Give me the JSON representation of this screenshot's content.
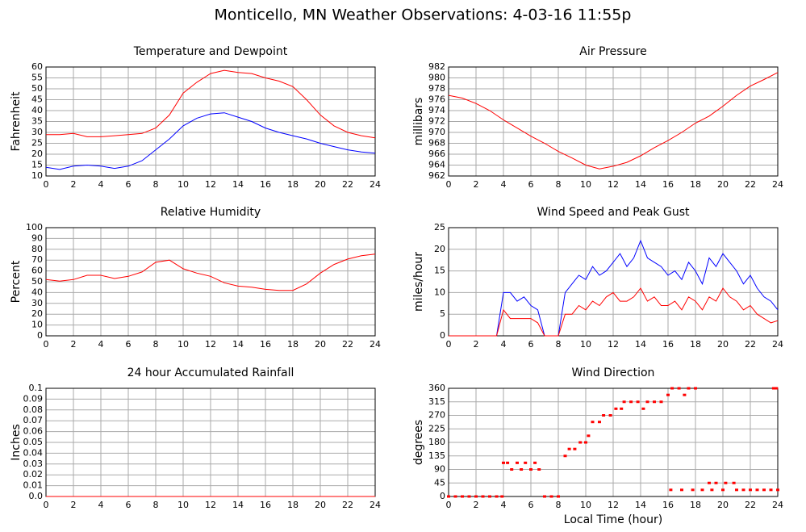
{
  "title": "Monticello, MN Weather Observations: 4-03-16 11:55p",
  "chart_data": [
    {
      "type": "line",
      "title": "Temperature and Dewpoint",
      "ylabel": "Fahrenheit",
      "x": [
        0,
        1,
        2,
        3,
        4,
        5,
        6,
        7,
        8,
        9,
        10,
        11,
        12,
        13,
        14,
        15,
        16,
        17,
        18,
        19,
        20,
        21,
        22,
        23,
        24
      ],
      "series": [
        {
          "color": "#ff0000",
          "values": [
            29,
            29,
            29.5,
            28,
            28,
            28.5,
            29,
            29.5,
            32,
            38,
            48,
            53,
            57,
            58.5,
            57.5,
            57,
            55,
            53.5,
            51,
            45,
            38,
            33,
            30,
            28.5,
            27.5
          ]
        },
        {
          "color": "#0000ff",
          "values": [
            14,
            13,
            14.5,
            15,
            14.5,
            13.5,
            14.5,
            17,
            22,
            27,
            33,
            36.5,
            38.5,
            39,
            37,
            35,
            32,
            30,
            28.5,
            27,
            25,
            23.5,
            22,
            21,
            20.5
          ]
        }
      ],
      "xlim": [
        0,
        24
      ],
      "xticks": [
        0,
        2,
        4,
        6,
        8,
        10,
        12,
        14,
        16,
        18,
        20,
        22,
        24
      ],
      "ylim": [
        10,
        60
      ],
      "yticks": [
        10,
        15,
        20,
        25,
        30,
        35,
        40,
        45,
        50,
        55,
        60
      ],
      "grid": true
    },
    {
      "type": "line",
      "title": "Air Pressure",
      "ylabel": "millibars",
      "x": [
        0,
        1,
        2,
        3,
        4,
        5,
        6,
        7,
        8,
        9,
        10,
        11,
        12,
        13,
        14,
        15,
        16,
        17,
        18,
        19,
        20,
        21,
        22,
        23,
        24
      ],
      "series": [
        {
          "color": "#ff0000",
          "values": [
            976.8,
            976.3,
            975.3,
            974,
            972.3,
            970.8,
            969.3,
            968,
            966.5,
            965.3,
            964,
            963.3,
            963.8,
            964.5,
            965.7,
            967.2,
            968.5,
            970,
            971.7,
            973,
            974.8,
            976.8,
            978.5,
            979.7,
            981
          ]
        }
      ],
      "xlim": [
        0,
        24
      ],
      "xticks": [
        0,
        2,
        4,
        6,
        8,
        10,
        12,
        14,
        16,
        18,
        20,
        22,
        24
      ],
      "ylim": [
        962,
        982
      ],
      "yticks": [
        962,
        964,
        966,
        968,
        970,
        972,
        974,
        976,
        978,
        980,
        982
      ],
      "grid": true
    },
    {
      "type": "line",
      "title": "Relative Humidity",
      "ylabel": "Percent",
      "x": [
        0,
        1,
        2,
        3,
        4,
        5,
        6,
        7,
        8,
        9,
        10,
        11,
        12,
        13,
        14,
        15,
        16,
        17,
        18,
        19,
        20,
        21,
        22,
        23,
        24
      ],
      "series": [
        {
          "color": "#ff0000",
          "values": [
            52,
            50.5,
            52,
            56,
            56,
            53,
            55,
            59,
            68,
            70,
            62,
            58,
            55,
            49,
            46,
            45,
            43,
            42,
            42,
            48,
            58,
            66,
            71,
            74,
            75.5
          ]
        }
      ],
      "xlim": [
        0,
        24
      ],
      "xticks": [
        0,
        2,
        4,
        6,
        8,
        10,
        12,
        14,
        16,
        18,
        20,
        22,
        24
      ],
      "ylim": [
        0,
        100
      ],
      "yticks": [
        0,
        10,
        20,
        30,
        40,
        50,
        60,
        70,
        80,
        90,
        100
      ],
      "grid": true
    },
    {
      "type": "line",
      "title": "Wind Speed and Peak Gust",
      "ylabel": "miles/hour",
      "x": [
        0,
        0.5,
        1,
        1.5,
        2,
        2.5,
        3,
        3.5,
        4,
        4.5,
        5,
        5.5,
        6,
        6.5,
        7,
        7.5,
        8,
        8.5,
        9,
        9.5,
        10,
        10.5,
        11,
        11.5,
        12,
        12.5,
        13,
        13.5,
        14,
        14.5,
        15,
        15.5,
        16,
        16.5,
        17,
        17.5,
        18,
        18.5,
        19,
        19.5,
        20,
        20.5,
        21,
        21.5,
        22,
        22.5,
        23,
        23.5,
        24
      ],
      "series": [
        {
          "color": "#0000ff",
          "values": [
            0,
            0,
            0,
            0,
            0,
            0,
            0,
            0,
            10,
            10,
            8,
            9,
            7,
            6,
            0,
            0,
            0,
            10,
            12,
            14,
            13,
            16,
            14,
            15,
            17,
            19,
            16,
            18,
            22,
            18,
            17,
            16,
            14,
            15,
            13,
            17,
            15,
            12,
            18,
            16,
            19,
            17,
            15,
            12,
            14,
            11,
            9,
            8,
            6
          ]
        },
        {
          "color": "#ff0000",
          "values": [
            0,
            0,
            0,
            0,
            0,
            0,
            0,
            0,
            6,
            4,
            4,
            4,
            4,
            3,
            0,
            0,
            0,
            5,
            5,
            7,
            6,
            8,
            7,
            9,
            10,
            8,
            8,
            9,
            11,
            8,
            9,
            7,
            7,
            8,
            6,
            9,
            8,
            6,
            9,
            8,
            11,
            9,
            8,
            6,
            7,
            5,
            4,
            3,
            3.5
          ]
        }
      ],
      "xlim": [
        0,
        24
      ],
      "xticks": [
        0,
        2,
        4,
        6,
        8,
        10,
        12,
        14,
        16,
        18,
        20,
        22,
        24
      ],
      "ylim": [
        0,
        25
      ],
      "yticks": [
        0,
        5,
        10,
        15,
        20,
        25
      ],
      "grid": true
    },
    {
      "type": "line",
      "title": "24 hour Accumulated Rainfall",
      "ylabel": "Inches",
      "x": [
        0,
        1,
        2,
        3,
        4,
        5,
        6,
        7,
        8,
        9,
        10,
        11,
        12,
        13,
        14,
        15,
        16,
        17,
        18,
        19,
        20,
        21,
        22,
        23,
        24
      ],
      "series": [
        {
          "color": "#ff0000",
          "values": [
            0,
            0,
            0,
            0,
            0,
            0,
            0,
            0,
            0,
            0,
            0,
            0,
            0,
            0,
            0,
            0,
            0,
            0,
            0,
            0,
            0,
            0,
            0,
            0,
            0
          ]
        }
      ],
      "xlim": [
        0,
        24
      ],
      "xticks": [
        0,
        2,
        4,
        6,
        8,
        10,
        12,
        14,
        16,
        18,
        20,
        22,
        24
      ],
      "ylim": [
        0,
        0.1
      ],
      "yticks": [
        {
          "value": 0,
          "label": "0.0"
        },
        0.01,
        0.02,
        0.03,
        0.04,
        0.05,
        0.06,
        0.07,
        0.08,
        0.09,
        0.1
      ],
      "grid": true
    },
    {
      "type": "scatter",
      "title": "Wind Direction",
      "ylabel": "degrees",
      "xlabel": "Local Time (hour)",
      "x": [
        0,
        0.5,
        1,
        1.5,
        2,
        2.5,
        3,
        3.5,
        3.9,
        4,
        4.3,
        4.6,
        5,
        5.3,
        5.6,
        6,
        6.3,
        6.6,
        7,
        7.5,
        8,
        8.5,
        8.8,
        9.2,
        9.6,
        10,
        10.2,
        10.5,
        11,
        11.3,
        11.8,
        12.2,
        12.6,
        12.8,
        13.3,
        13.8,
        14.2,
        14.5,
        15,
        15.5,
        16,
        16.3,
        16.2,
        16.8,
        17.2,
        17.5,
        18,
        17,
        17.8,
        18.5,
        19,
        19.5,
        20,
        20.2,
        20.8,
        21,
        21.5,
        22,
        22.5,
        23,
        23.5,
        24,
        23.7,
        23.9,
        19.2
      ],
      "series": [
        {
          "color": "#ff0000",
          "values": [
            0,
            0,
            0,
            0,
            0,
            0,
            0,
            0,
            0,
            112,
            112,
            90,
            112,
            90,
            112,
            90,
            112,
            90,
            0,
            0,
            0,
            135,
            158,
            158,
            180,
            180,
            202,
            248,
            248,
            270,
            270,
            292,
            292,
            315,
            315,
            315,
            292,
            315,
            315,
            315,
            338,
            360,
            22,
            360,
            338,
            360,
            360,
            22,
            22,
            22,
            45,
            45,
            22,
            45,
            45,
            22,
            22,
            22,
            22,
            22,
            22,
            22,
            360,
            360,
            22
          ]
        }
      ],
      "xlim": [
        0,
        24
      ],
      "xticks": [
        0,
        2,
        4,
        6,
        8,
        10,
        12,
        14,
        16,
        18,
        20,
        22,
        24
      ],
      "ylim": [
        0,
        360
      ],
      "yticks": [
        0,
        45,
        90,
        135,
        180,
        225,
        270,
        315,
        360
      ],
      "grid": true
    }
  ]
}
